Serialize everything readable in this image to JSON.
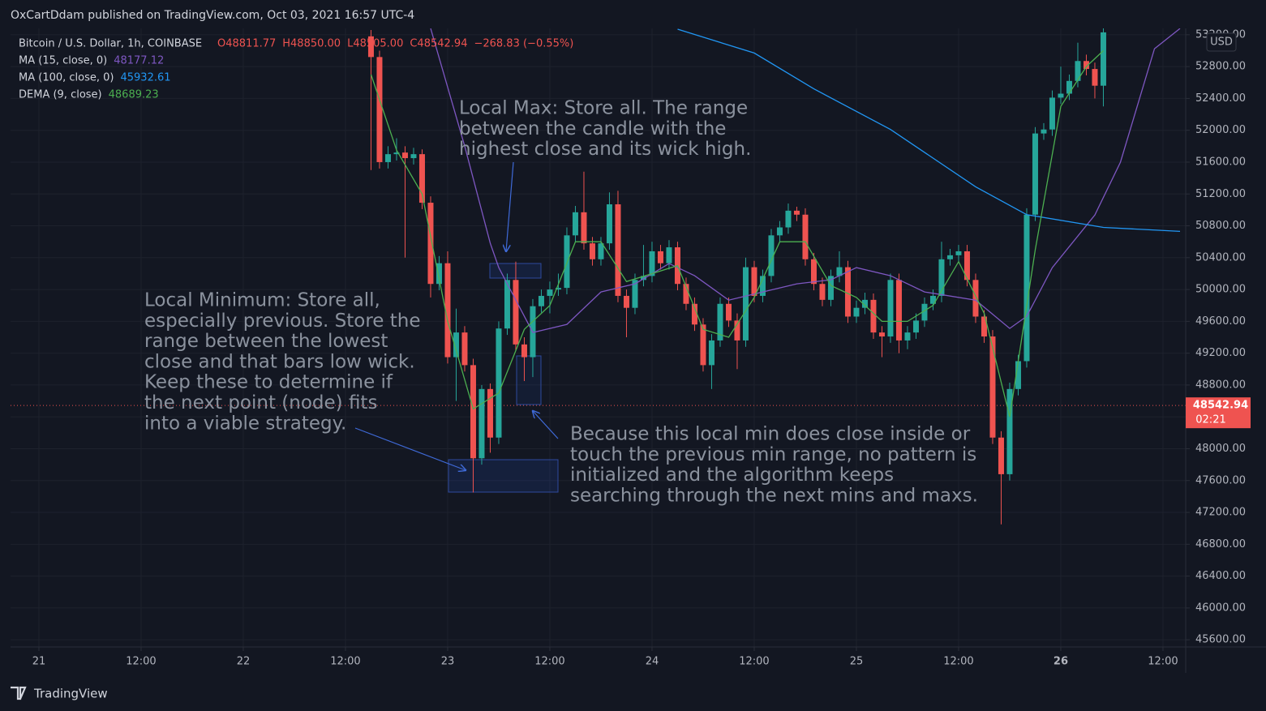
{
  "header": {
    "publisher": "OxCartDdam published on TradingView.com, Oct 03, 2021 16:57 UTC-4",
    "logo": "TradingView"
  },
  "chart_data": {
    "type": "candlestick",
    "symbol": "Bitcoin / U.S. Dollar, 1h, COINBASE",
    "ohlc_header": [
      "O48811.77",
      "H48850.00",
      "L48505.00",
      "C48542.94",
      "−268.83 (−0.55%)"
    ],
    "currency": "USD",
    "up_color": "#26a69a",
    "down_color": "#ef5350",
    "x": [
      39,
      40,
      41,
      42,
      43,
      44,
      45,
      46,
      47,
      48,
      49,
      50,
      51,
      52,
      53,
      54,
      55,
      56,
      57,
      58,
      59,
      60,
      61,
      62,
      63,
      64,
      65,
      66,
      67,
      68,
      69,
      70,
      71,
      72,
      73,
      74,
      75,
      76,
      77,
      78,
      79,
      80,
      81,
      82,
      83,
      84,
      85,
      86,
      87,
      88,
      89,
      90,
      91,
      92,
      93,
      94,
      95,
      96,
      97,
      98,
      99,
      100,
      101,
      102,
      103,
      104,
      105,
      106,
      107,
      108,
      109,
      110,
      111,
      112,
      113,
      114,
      115,
      116,
      117,
      118,
      119,
      120,
      121,
      122,
      123,
      124,
      125
    ],
    "open": [
      53180,
      52920,
      51600,
      51700,
      51720,
      51650,
      51700,
      51090,
      50070,
      50330,
      49150,
      49460,
      49050,
      47880,
      48750,
      48140,
      49510,
      50120,
      49310,
      49150,
      49790,
      49920,
      50000,
      50020,
      50680,
      50970,
      50580,
      50380,
      50580,
      51070,
      49920,
      49770,
      50120,
      50170,
      50480,
      50330,
      50530,
      50070,
      49820,
      49560,
      49050,
      49360,
      49820,
      49610,
      49360,
      50280,
      49920,
      50170,
      50680,
      50780,
      50990,
      50940,
      50380,
      50070,
      49870,
      50170,
      50280,
      49660,
      49770,
      49870,
      49460,
      49410,
      50120,
      49360,
      49460,
      49610,
      49820,
      49920,
      50380,
      50430,
      50480,
      50120,
      49660,
      49410,
      48140,
      47680,
      48750,
      49100,
      50940,
      51960,
      52010,
      52410,
      52460,
      52620,
      52870,
      52770,
      52560
    ],
    "high": [
      53260,
      53000,
      51800,
      51900,
      51800,
      51780,
      51760,
      51170,
      50420,
      50480,
      49760,
      49540,
      49130,
      48800,
      48820,
      49600,
      50200,
      50350,
      49400,
      49880,
      50000,
      50100,
      50200,
      50780,
      51050,
      51480,
      50660,
      50660,
      51220,
      51240,
      50000,
      50200,
      50560,
      50600,
      50560,
      50620,
      50600,
      50150,
      49900,
      49640,
      49440,
      49900,
      49900,
      49700,
      50400,
      50360,
      50250,
      50760,
      50860,
      51080,
      51040,
      51020,
      50460,
      50150,
      50250,
      50480,
      50360,
      49860,
      49960,
      49950,
      49540,
      50200,
      50200,
      49540,
      49700,
      49900,
      50000,
      50600,
      50510,
      50560,
      50560,
      50200,
      49740,
      49490,
      48220,
      48830,
      49180,
      51020,
      52040,
      52090,
      52500,
      52800,
      52700,
      53100,
      52950,
      52850,
      53300
    ],
    "low": [
      51500,
      51520,
      51520,
      51620,
      50400,
      51570,
      51010,
      49900,
      49990,
      49070,
      48600,
      48970,
      47450,
      47800,
      47950,
      48060,
      49430,
      49230,
      48850,
      48900,
      49710,
      49700,
      49920,
      49940,
      50600,
      50500,
      50300,
      50300,
      50500,
      49840,
      49400,
      49690,
      50040,
      50090,
      50250,
      50250,
      49990,
      49740,
      49480,
      48970,
      48750,
      49280,
      49530,
      49000,
      49280,
      49840,
      49840,
      50090,
      50600,
      50700,
      50860,
      50300,
      49990,
      49790,
      49790,
      50090,
      49580,
      49580,
      49690,
      49380,
      49150,
      49330,
      49200,
      49250,
      49380,
      49530,
      49740,
      49840,
      50300,
      50350,
      50040,
      49580,
      49330,
      48060,
      47050,
      47600,
      48670,
      49020,
      50860,
      51880,
      51930,
      52330,
      52380,
      52540,
      52690,
      52400,
      52300
    ],
    "close": [
      52920,
      51600,
      51700,
      51720,
      51650,
      51700,
      51090,
      50070,
      50330,
      49150,
      49460,
      49050,
      47880,
      48750,
      48140,
      49510,
      50120,
      49310,
      49150,
      49790,
      49920,
      50000,
      50020,
      50680,
      50970,
      50580,
      50380,
      50580,
      51070,
      49920,
      49770,
      50120,
      50170,
      50480,
      50330,
      50530,
      50070,
      49820,
      49560,
      49050,
      49360,
      49820,
      49610,
      49360,
      50280,
      49920,
      50170,
      50680,
      50780,
      50990,
      50940,
      50380,
      50070,
      49870,
      50170,
      50280,
      49660,
      49770,
      49870,
      49460,
      49410,
      50120,
      49360,
      49460,
      49610,
      49820,
      49920,
      50380,
      50430,
      50480,
      50120,
      49660,
      49410,
      48140,
      47680,
      48750,
      49100,
      50940,
      51960,
      52010,
      52410,
      52460,
      52620,
      52870,
      52770,
      52560,
      53230
    ],
    "lines": [
      {
        "name": "MA (15, close, 0)",
        "legend_value": "48177.12",
        "color": "#7e57c2",
        "x": [
          46,
          50,
          53,
          54,
          58,
          62,
          66,
          70,
          74,
          77,
          81,
          85,
          89,
          93,
          96,
          100,
          104,
          110,
          114,
          116,
          119,
          124,
          127,
          131,
          134
        ],
        "values": [
          53279,
          51800,
          50580,
          50275,
          49460,
          49562,
          49969,
          50071,
          50326,
          50173,
          49867,
          49969,
          50071,
          50122,
          50275,
          50173,
          49969,
          49867,
          49511,
          49664,
          50275,
          50937,
          51599,
          53024,
          53279
        ]
      },
      {
        "name": "MA (100, close, 0)",
        "legend_value": "45932.61",
        "color": "#2196f3",
        "x": [
          75,
          84,
          91,
          100,
          110,
          116,
          125,
          134
        ],
        "values": [
          53270,
          52970,
          52520,
          52010,
          51290,
          50940,
          50780,
          50730
        ]
      },
      {
        "name": "DEMA (9, close)",
        "legend_value": "48689.23",
        "color": "#4caf50",
        "x": [
          39,
          42,
          45,
          48,
          51,
          54,
          57,
          60,
          63,
          66,
          69,
          72,
          75,
          78,
          81,
          84,
          87,
          90,
          93,
          96,
          99,
          102,
          105,
          108,
          111,
          114,
          117,
          120,
          123,
          125
        ],
        "values": [
          52700,
          51750,
          51200,
          49600,
          48500,
          48700,
          49500,
          49800,
          50600,
          50600,
          50100,
          50200,
          50300,
          49500,
          49400,
          49900,
          50600,
          50600,
          50050,
          49900,
          49600,
          49600,
          49800,
          50350,
          49700,
          48400,
          50500,
          52300,
          52800,
          53000
        ]
      }
    ],
    "last_price": 48542.94,
    "countdown": "02:21",
    "xlim": [
      -3.33,
      134.67
    ],
    "ylim": [
      45510,
      53280
    ],
    "xticks": [
      {
        "value": 0,
        "label": "21"
      },
      {
        "value": 12,
        "label": "12:00"
      },
      {
        "value": 24,
        "label": "22"
      },
      {
        "value": 36,
        "label": "12:00"
      },
      {
        "value": 48,
        "label": "23"
      },
      {
        "value": 60,
        "label": "12:00"
      },
      {
        "value": 72,
        "label": "24"
      },
      {
        "value": 84,
        "label": "12:00"
      },
      {
        "value": 96,
        "label": "25"
      },
      {
        "value": 108,
        "label": "12:00"
      },
      {
        "value": 120,
        "label": "26"
      },
      {
        "value": 132,
        "label": "12:00"
      }
    ],
    "yticks": [
      {
        "value": 45600,
        "label": "45600.00"
      },
      {
        "value": 46000,
        "label": "46000.00"
      },
      {
        "value": 46400,
        "label": "46400.00"
      },
      {
        "value": 46800,
        "label": "46800.00"
      },
      {
        "value": 47200,
        "label": "47200.00"
      },
      {
        "value": 47600,
        "label": "47600.00"
      },
      {
        "value": 48000,
        "label": "48000.00"
      },
      {
        "value": 48400,
        "label": "48400.00"
      },
      {
        "value": 48800,
        "label": "48800.00"
      },
      {
        "value": 49200,
        "label": "49200.00"
      },
      {
        "value": 49600,
        "label": "49600.00"
      },
      {
        "value": 50000,
        "label": "50000.00"
      },
      {
        "value": 50400,
        "label": "50400.00"
      },
      {
        "value": 50800,
        "label": "50800.00"
      },
      {
        "value": 51200,
        "label": "51200.00"
      },
      {
        "value": 51600,
        "label": "51600.00"
      },
      {
        "value": 52000,
        "label": "52000.00"
      },
      {
        "value": 52400,
        "label": "52400.00"
      },
      {
        "value": 52800,
        "label": "52800.00"
      },
      {
        "value": 53200,
        "label": "53200.00"
      }
    ],
    "grid": true,
    "annotations": [
      {
        "lines": [
          "Local Max: Store all. The range",
          "between the candle with the",
          "highest close and its wick high."
        ]
      },
      {
        "lines": [
          "Local Minimum: Store all,",
          "especially previous. Store the",
          "range between the lowest",
          "close and that bars low wick.",
          "Keep these to determine if",
          "the next point (node) fits",
          "into a viable strategy."
        ]
      },
      {
        "lines": [
          "Because this local min does close inside or",
          "touch the previous min range, no pattern is",
          "initialized and the algorithm keeps",
          "searching through the next mins and maxs."
        ]
      }
    ]
  }
}
